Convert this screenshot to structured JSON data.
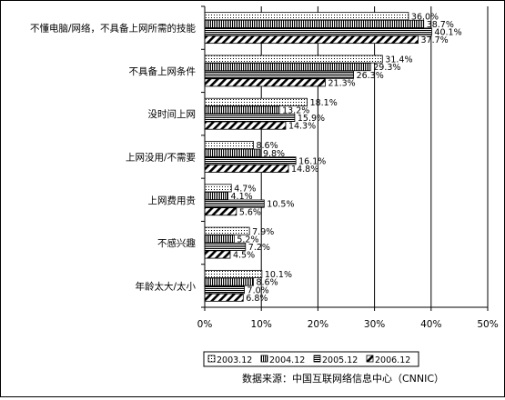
{
  "chart_data": {
    "type": "bar",
    "orientation": "horizontal",
    "categories": [
      "不懂电脑/网络，不具备上网所需的技能",
      "不具备上网条件",
      "没时间上网",
      "上网没用/不需要",
      "上网费用贵",
      "不感兴趣",
      "年龄太大/太小"
    ],
    "series": [
      {
        "name": "2003.12",
        "values": [
          36.0,
          31.4,
          18.1,
          8.6,
          4.7,
          7.9,
          10.1
        ],
        "labels": [
          "36.0%",
          "31.4%",
          "18.1%",
          "8.6%",
          "4.7%",
          "7.9%",
          "10.1%"
        ],
        "pattern": "dots"
      },
      {
        "name": "2004.12",
        "values": [
          38.7,
          29.3,
          13.2,
          9.8,
          4.1,
          5.2,
          8.6
        ],
        "labels": [
          "38.7%",
          "29.3%",
          "13.2%",
          "9.8%",
          "4.1%",
          "5.2%",
          "8.6%"
        ],
        "pattern": "vertical"
      },
      {
        "name": "2005.12",
        "values": [
          40.1,
          26.3,
          15.9,
          16.1,
          10.5,
          7.2,
          7.0
        ],
        "labels": [
          "40.1%",
          "26.3%",
          "15.9%",
          "16.1%",
          "10.5%",
          "7.2%",
          "7.0%"
        ],
        "pattern": "horizontal"
      },
      {
        "name": "2006.12",
        "values": [
          37.7,
          21.3,
          14.3,
          14.8,
          5.6,
          4.5,
          6.8
        ],
        "labels": [
          "37.7%",
          "21.3%",
          "14.3%",
          "14.8%",
          "5.6%",
          "4.5%",
          "6.8%"
        ],
        "pattern": "diagonal"
      }
    ],
    "xlim": [
      0,
      50
    ],
    "xticks": [
      0,
      10,
      20,
      30,
      40,
      50
    ],
    "xtick_labels": [
      "0%",
      "10%",
      "20%",
      "30%",
      "40%",
      "50%"
    ],
    "grid": "vertical",
    "legend": "bottom",
    "source_note": "数据来源：中国互联网络信息中心（CNNIC）"
  }
}
